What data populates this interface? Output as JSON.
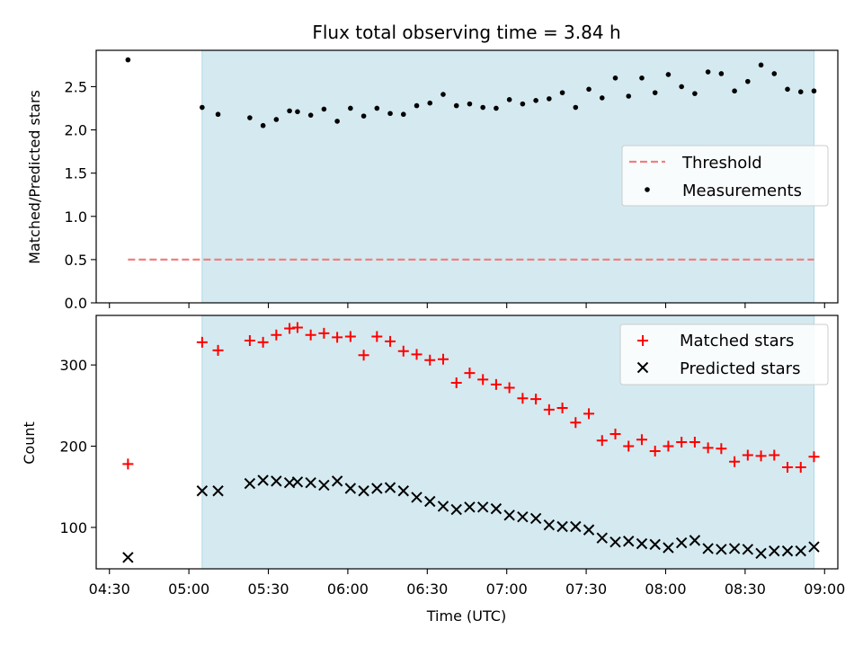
{
  "chart_data": [
    {
      "type": "scatter",
      "panel": "top",
      "title": "Flux total observing time = 3.84 h",
      "xlabel": "",
      "ylabel": "Matched/Predicted stars",
      "ylim": [
        0,
        2.92
      ],
      "yticks": [
        0.0,
        0.5,
        1.0,
        1.5,
        2.0,
        2.5
      ],
      "ytick_labels": [
        "0.0",
        "0.5",
        "1.0",
        "1.5",
        "2.0",
        "2.5"
      ],
      "xlim": [
        "04:25",
        "09:05"
      ],
      "shaded_interval": [
        "05:05",
        "08:56"
      ],
      "shade_color": "#d4eaf0",
      "legend": {
        "placement": "center-right",
        "entries": [
          "Threshold",
          "Measurements"
        ]
      },
      "threshold": {
        "name": "Threshold",
        "value": 0.5,
        "x_start": "04:37",
        "x_end": "08:56",
        "color": "#f08080",
        "style": "dashed"
      },
      "series": [
        {
          "name": "Measurements",
          "marker": "dot",
          "color": "#000000",
          "x": [
            "04:37",
            "05:05",
            "05:11",
            "05:23",
            "05:28",
            "05:33",
            "05:38",
            "05:41",
            "05:46",
            "05:51",
            "05:56",
            "06:01",
            "06:06",
            "06:11",
            "06:16",
            "06:21",
            "06:26",
            "06:31",
            "06:36",
            "06:41",
            "06:46",
            "06:51",
            "06:56",
            "07:01",
            "07:06",
            "07:11",
            "07:16",
            "07:21",
            "07:26",
            "07:31",
            "07:36",
            "07:41",
            "07:46",
            "07:51",
            "07:56",
            "08:01",
            "08:06",
            "08:11",
            "08:16",
            "08:21",
            "08:26",
            "08:31",
            "08:36",
            "08:41",
            "08:46",
            "08:51",
            "08:56"
          ],
          "y": [
            2.81,
            2.26,
            2.18,
            2.14,
            2.05,
            2.12,
            2.22,
            2.21,
            2.17,
            2.24,
            2.1,
            2.25,
            2.16,
            2.25,
            2.19,
            2.18,
            2.28,
            2.31,
            2.41,
            2.28,
            2.3,
            2.26,
            2.25,
            2.35,
            2.3,
            2.34,
            2.36,
            2.43,
            2.26,
            2.47,
            2.37,
            2.6,
            2.39,
            2.6,
            2.43,
            2.64,
            2.5,
            2.42,
            2.67,
            2.65,
            2.45,
            2.56,
            2.75,
            2.65,
            2.47,
            2.44,
            2.45
          ]
        }
      ]
    },
    {
      "type": "scatter",
      "panel": "bottom",
      "title": "",
      "xlabel": "Time (UTC)",
      "ylabel": "Count",
      "ylim": [
        49,
        361
      ],
      "yticks": [
        100,
        200,
        300
      ],
      "ytick_labels": [
        "100",
        "200",
        "300"
      ],
      "xlim": [
        "04:25",
        "09:05"
      ],
      "xticks": [
        "04:30",
        "05:00",
        "05:30",
        "06:00",
        "06:30",
        "07:00",
        "07:30",
        "08:00",
        "08:30",
        "09:00"
      ],
      "shaded_interval": [
        "05:05",
        "08:56"
      ],
      "shade_color": "#d4eaf0",
      "legend": {
        "placement": "top-right",
        "entries": [
          "Matched stars",
          "Predicted stars"
        ]
      },
      "series": [
        {
          "name": "Matched stars",
          "marker": "plus",
          "color": "#ff0000",
          "x": [
            "04:37",
            "05:05",
            "05:11",
            "05:23",
            "05:28",
            "05:33",
            "05:38",
            "05:41",
            "05:46",
            "05:51",
            "05:56",
            "06:01",
            "06:06",
            "06:11",
            "06:16",
            "06:21",
            "06:26",
            "06:31",
            "06:36",
            "06:41",
            "06:46",
            "06:51",
            "06:56",
            "07:01",
            "07:06",
            "07:11",
            "07:16",
            "07:21",
            "07:26",
            "07:31",
            "07:36",
            "07:41",
            "07:46",
            "07:51",
            "07:56",
            "08:01",
            "08:06",
            "08:11",
            "08:16",
            "08:21",
            "08:26",
            "08:31",
            "08:36",
            "08:41",
            "08:46",
            "08:51",
            "08:56"
          ],
          "y": [
            178,
            328,
            318,
            330,
            328,
            337,
            345,
            346,
            337,
            339,
            334,
            335,
            312,
            335,
            329,
            317,
            313,
            306,
            307,
            278,
            290,
            282,
            276,
            272,
            259,
            258,
            245,
            247,
            229,
            240,
            207,
            215,
            200,
            208,
            194,
            200,
            205,
            205,
            198,
            197,
            181,
            189,
            188,
            189,
            174,
            174,
            187
          ]
        },
        {
          "name": "Predicted stars",
          "marker": "x",
          "color": "#000000",
          "x": [
            "04:37",
            "05:05",
            "05:11",
            "05:23",
            "05:28",
            "05:33",
            "05:38",
            "05:41",
            "05:46",
            "05:51",
            "05:56",
            "06:01",
            "06:06",
            "06:11",
            "06:16",
            "06:21",
            "06:26",
            "06:31",
            "06:36",
            "06:41",
            "06:46",
            "06:51",
            "06:56",
            "07:01",
            "07:06",
            "07:11",
            "07:16",
            "07:21",
            "07:26",
            "07:31",
            "07:36",
            "07:41",
            "07:46",
            "07:51",
            "07:56",
            "08:01",
            "08:06",
            "08:11",
            "08:16",
            "08:21",
            "08:26",
            "08:31",
            "08:36",
            "08:41",
            "08:46",
            "08:51",
            "08:56"
          ],
          "y": [
            63,
            145,
            145,
            154,
            158,
            157,
            155,
            156,
            155,
            152,
            157,
            148,
            145,
            148,
            149,
            145,
            137,
            132,
            126,
            122,
            125,
            125,
            123,
            115,
            113,
            111,
            103,
            101,
            101,
            97,
            87,
            82,
            83,
            80,
            79,
            75,
            81,
            84,
            74,
            73,
            74,
            73,
            68,
            71,
            71,
            71,
            76
          ]
        }
      ]
    }
  ]
}
